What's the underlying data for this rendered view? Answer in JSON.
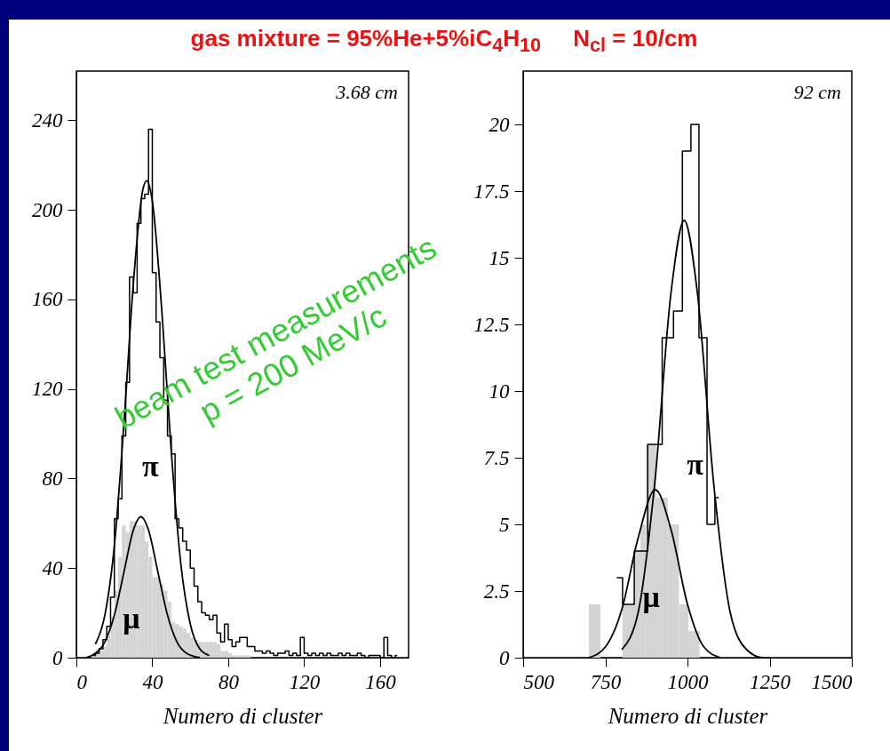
{
  "chart_data": [
    {
      "type": "histogram",
      "title": "gas mixture = 95%He+5%iC$_{4}$H$_{10}$     N$_{cl}$ = 10/cm",
      "subtitle": "3.68 cm",
      "xlabel": "Numero di cluster",
      "xlim": [
        0,
        175
      ],
      "xticks": [
        0,
        40,
        80,
        120,
        160
      ],
      "ylim": [
        0,
        262
      ],
      "yticks": [
        0,
        40,
        80,
        120,
        160,
        200,
        240
      ],
      "annotations": [
        "beam test measurements",
        "p = 200 MeV/c"
      ],
      "series": [
        {
          "name": "π",
          "type": "step",
          "color": "#000000",
          "x": [
            9,
            11,
            13,
            15,
            17,
            19,
            21,
            23,
            25,
            27,
            29,
            31,
            33,
            35,
            37,
            39,
            41,
            43,
            45,
            47,
            49,
            51,
            53,
            55,
            57,
            59,
            61,
            63,
            65,
            67,
            69,
            71,
            73,
            75,
            77,
            79,
            81,
            83,
            85,
            87,
            89,
            91,
            93,
            95,
            97,
            99,
            101,
            103,
            105,
            107,
            109,
            111,
            113,
            115,
            117,
            119,
            121,
            123,
            125,
            127,
            129,
            131,
            133,
            135,
            137,
            139,
            141,
            143,
            145,
            147,
            149,
            151,
            153,
            155,
            157,
            159,
            161,
            163,
            165,
            167,
            169
          ],
          "values": [
            1,
            2,
            4,
            8,
            14,
            27,
            62,
            71,
            99,
            123,
            170,
            163,
            194,
            205,
            207,
            236,
            172,
            150,
            134,
            115,
            99,
            91,
            62,
            58,
            52,
            48,
            40,
            32,
            25,
            20,
            19,
            17,
            19,
            11,
            7,
            15,
            8,
            5,
            7,
            9,
            9,
            5,
            5,
            3,
            3,
            2,
            3,
            2,
            1,
            2,
            2,
            3,
            1,
            2,
            1,
            9,
            2,
            1,
            2,
            1,
            2,
            1,
            2,
            1,
            1,
            2,
            1,
            2,
            1,
            1,
            2,
            1,
            0,
            1,
            1,
            1,
            0,
            9,
            1,
            0,
            1
          ]
        },
        {
          "name": "μ",
          "type": "histogram",
          "color": "#d4d4d4",
          "bins": [
            8,
            10,
            12,
            14,
            16,
            18,
            20,
            22,
            24,
            26,
            28,
            30,
            32,
            34,
            36,
            38,
            40,
            42,
            44,
            46,
            48,
            50,
            52,
            54,
            56,
            58,
            60,
            62,
            64,
            66,
            68,
            70,
            72,
            74,
            76,
            78,
            80,
            82,
            84,
            86,
            88,
            90,
            92
          ],
          "values": [
            1,
            2,
            3,
            5,
            10,
            18,
            30,
            45,
            59,
            56,
            61,
            61,
            59,
            59,
            52,
            45,
            36,
            36,
            33,
            30,
            25,
            16,
            15,
            14,
            13,
            11,
            9,
            8,
            7,
            7,
            7,
            7,
            7,
            6,
            3,
            3,
            2,
            1,
            1,
            1,
            1,
            1
          ]
        },
        {
          "type": "line",
          "color": "#000000",
          "x": [
            10,
            15,
            20,
            25,
            30,
            35,
            37,
            40,
            45,
            50,
            55,
            60,
            65,
            70
          ],
          "values": [
            6,
            19,
            50,
            104,
            167,
            209,
            213,
            204,
            155,
            92,
            42,
            15,
            4,
            1
          ]
        },
        {
          "type": "line",
          "color": "#000000",
          "x": [
            5,
            10,
            15,
            20,
            25,
            30,
            34,
            38,
            43,
            48,
            53,
            58,
            65
          ],
          "values": [
            0,
            2,
            7,
            19,
            38,
            57,
            63,
            57,
            38,
            19,
            7,
            2,
            0
          ]
        }
      ]
    },
    {
      "type": "histogram",
      "subtitle": "92 cm",
      "xlabel": "Numero di cluster",
      "xlim": [
        500,
        1500
      ],
      "xticks": [
        500,
        750,
        1000,
        1250,
        1500
      ],
      "ylim": [
        0,
        22
      ],
      "yticks": [
        0,
        2.5,
        5,
        7.5,
        10,
        12.5,
        15,
        17.5,
        20
      ],
      "series": [
        {
          "name": "π",
          "type": "step",
          "color": "#000000",
          "x": [
            785,
            820,
            856,
            902,
            944,
            971,
            998,
            1023,
            1047,
            1072,
            1095
          ],
          "values": [
            3,
            2,
            4,
            8,
            12,
            13,
            19,
            20,
            12,
            5,
            6
          ]
        },
        {
          "name": "μ",
          "type": "histogram",
          "color": "#d4d4d4",
          "bins": [
            700,
            735,
            802,
            838,
            857,
            874,
            905,
            940,
            974,
            1003,
            1037
          ],
          "values": [
            2,
            null,
            2,
            4,
            5,
            8,
            6,
            5,
            2,
            1
          ]
        },
        {
          "type": "line",
          "color": "#000000",
          "x": [
            800,
            850,
            900,
            950,
            990,
            1030,
            1080,
            1130,
            1180,
            1230,
            1250
          ],
          "values": [
            0.3,
            1.7,
            6.5,
            13.7,
            16.4,
            13.7,
            6.5,
            1.7,
            0.3,
            0,
            0
          ]
        },
        {
          "type": "line",
          "color": "#000000",
          "x": [
            700,
            750,
            800,
            850,
            902,
            950,
            1000,
            1050,
            1100
          ],
          "values": [
            0,
            0.4,
            1.8,
            4.5,
            6.3,
            4.8,
            2,
            0.4,
            0
          ]
        }
      ]
    }
  ]
}
